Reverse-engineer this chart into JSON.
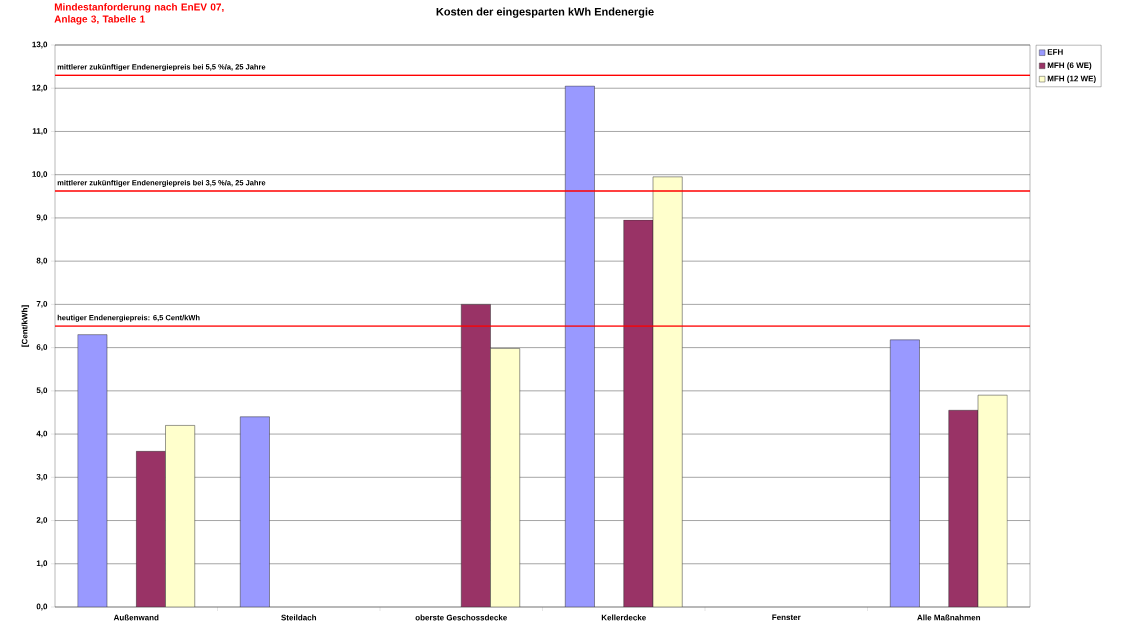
{
  "chart_data": {
    "type": "bar",
    "title": "Kosten der eingesparten kWh Endenergie",
    "ylabel": "[Cent/kWh]",
    "annotations": [
      "Mindestanforderung nach EnEV 07, Anlage 3, Tabelle 1"
    ],
    "categories": [
      "Außenwand",
      "Steildach",
      "oberste Geschossdecke",
      "Kellerdecke",
      "Fenster",
      "Alle Maßnahmen"
    ],
    "series": [
      {
        "name": "EFH",
        "color": "#9999ff",
        "values": [
          6.3,
          4.4,
          null,
          12.05,
          null,
          6.18
        ]
      },
      {
        "name": "MFH (6 WE)",
        "color": "#993366",
        "values": [
          3.6,
          null,
          7.0,
          8.95,
          null,
          4.55
        ]
      },
      {
        "name": "MFH (12 WE)",
        "color": "#ffffcc",
        "values": [
          4.2,
          null,
          5.98,
          9.95,
          null,
          4.9
        ]
      }
    ],
    "ylim": [
      0,
      13
    ],
    "yticks": [
      {
        "value": 0,
        "label": "0,0"
      },
      {
        "value": 1,
        "label": "1,0"
      },
      {
        "value": 2,
        "label": "2,0"
      },
      {
        "value": 3,
        "label": "3,0"
      },
      {
        "value": 4,
        "label": "4,0"
      },
      {
        "value": 5,
        "label": "5,0"
      },
      {
        "value": 6,
        "label": "6,0"
      },
      {
        "value": 7,
        "label": "7,0"
      },
      {
        "value": 8,
        "label": "8,0"
      },
      {
        "value": 9,
        "label": "9,0"
      },
      {
        "value": 10,
        "label": "10,0"
      },
      {
        "value": 11,
        "label": "11,0"
      },
      {
        "value": 12,
        "label": "12,0"
      },
      {
        "value": 13,
        "label": "13,0"
      }
    ],
    "ref_lines": [
      {
        "axis": "y",
        "value": 12.3,
        "label": "mittlerer zukünftiger Endenergiepreis bei 5,5 %/a, 25 Jahre",
        "color": "#ff0000"
      },
      {
        "axis": "y",
        "value": 9.62,
        "label": "mittlerer zukünftiger Endenergiepreis bei 3,5 %/a, 25 Jahre",
        "color": "#ff0000"
      },
      {
        "axis": "y",
        "value": 6.5,
        "label": "heutiger Endenergiepreis: 6,5 Cent/kWh",
        "color": "#ff0000"
      }
    ],
    "grid": "y",
    "legend": "top right"
  }
}
